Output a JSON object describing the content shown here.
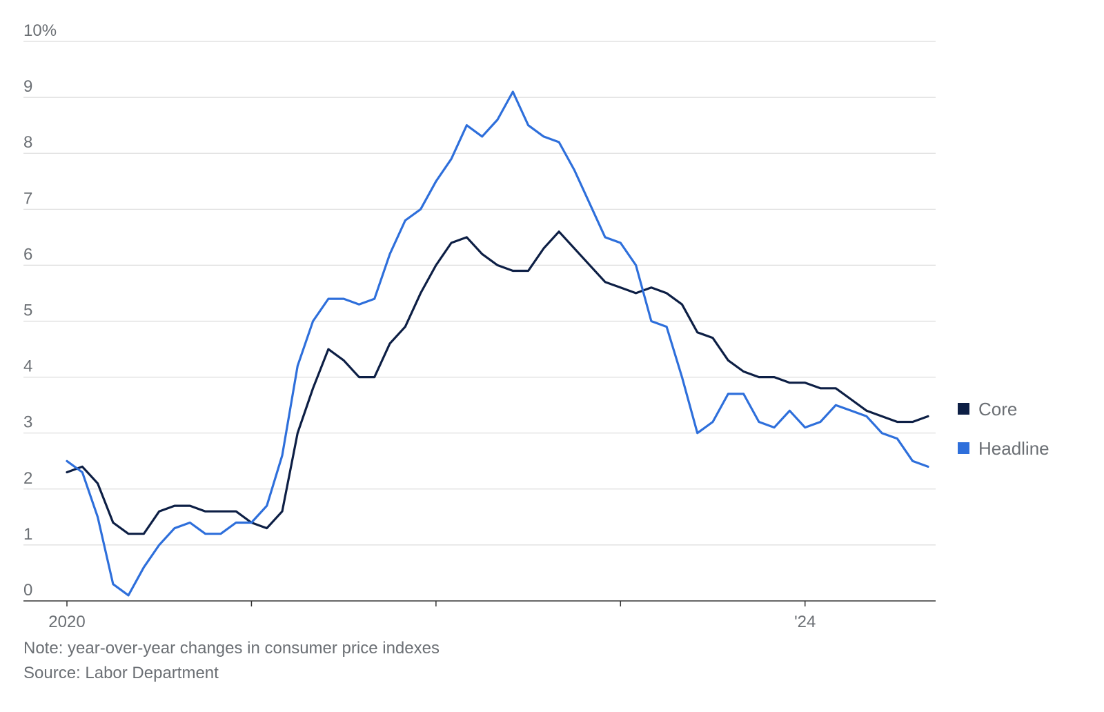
{
  "chart_data": {
    "type": "line",
    "y_unit": "%",
    "ylim": [
      0,
      10
    ],
    "yticks": [
      "0",
      "1",
      "2",
      "3",
      "4",
      "5",
      "6",
      "7",
      "8",
      "9",
      "10%"
    ],
    "x_range": [
      "2020-01",
      "2024-09"
    ],
    "xtick_labels": [
      {
        "date": "2020-01",
        "label": "2020"
      },
      {
        "date": "2024-01",
        "label": "'24"
      }
    ],
    "x_minor_ticks": [
      "2021-01",
      "2022-01",
      "2023-01"
    ],
    "grid": "horizontal",
    "legend": {
      "placement": "right"
    },
    "series": [
      {
        "name": "Core",
        "color": "#0d1f45",
        "x": [
          "2020-01",
          "2020-02",
          "2020-03",
          "2020-04",
          "2020-05",
          "2020-06",
          "2020-07",
          "2020-08",
          "2020-09",
          "2020-10",
          "2020-11",
          "2020-12",
          "2021-01",
          "2021-02",
          "2021-03",
          "2021-04",
          "2021-05",
          "2021-06",
          "2021-07",
          "2021-08",
          "2021-09",
          "2021-10",
          "2021-11",
          "2021-12",
          "2022-01",
          "2022-02",
          "2022-03",
          "2022-04",
          "2022-05",
          "2022-06",
          "2022-07",
          "2022-08",
          "2022-09",
          "2022-10",
          "2022-11",
          "2022-12",
          "2023-01",
          "2023-02",
          "2023-03",
          "2023-04",
          "2023-05",
          "2023-06",
          "2023-07",
          "2023-08",
          "2023-09",
          "2023-10",
          "2023-11",
          "2023-12",
          "2024-01",
          "2024-02",
          "2024-03",
          "2024-04",
          "2024-05",
          "2024-06",
          "2024-07",
          "2024-08",
          "2024-09"
        ],
        "values": [
          2.3,
          2.4,
          2.1,
          1.4,
          1.2,
          1.2,
          1.6,
          1.7,
          1.7,
          1.6,
          1.6,
          1.6,
          1.4,
          1.3,
          1.6,
          3.0,
          3.8,
          4.5,
          4.3,
          4.0,
          4.0,
          4.6,
          4.9,
          5.5,
          6.0,
          6.4,
          6.5,
          6.2,
          6.0,
          5.9,
          5.9,
          6.3,
          6.6,
          6.3,
          6.0,
          5.7,
          5.6,
          5.5,
          5.6,
          5.5,
          5.3,
          4.8,
          4.7,
          4.3,
          4.1,
          4.0,
          4.0,
          3.9,
          3.9,
          3.8,
          3.8,
          3.6,
          3.4,
          3.3,
          3.2,
          3.2,
          3.3
        ]
      },
      {
        "name": "Headline",
        "color": "#2e6fdb",
        "x": [
          "2020-01",
          "2020-02",
          "2020-03",
          "2020-04",
          "2020-05",
          "2020-06",
          "2020-07",
          "2020-08",
          "2020-09",
          "2020-10",
          "2020-11",
          "2020-12",
          "2021-01",
          "2021-02",
          "2021-03",
          "2021-04",
          "2021-05",
          "2021-06",
          "2021-07",
          "2021-08",
          "2021-09",
          "2021-10",
          "2021-11",
          "2021-12",
          "2022-01",
          "2022-02",
          "2022-03",
          "2022-04",
          "2022-05",
          "2022-06",
          "2022-07",
          "2022-08",
          "2022-09",
          "2022-10",
          "2022-11",
          "2022-12",
          "2023-01",
          "2023-02",
          "2023-03",
          "2023-04",
          "2023-05",
          "2023-06",
          "2023-07",
          "2023-08",
          "2023-09",
          "2023-10",
          "2023-11",
          "2023-12",
          "2024-01",
          "2024-02",
          "2024-03",
          "2024-04",
          "2024-05",
          "2024-06",
          "2024-07",
          "2024-08",
          "2024-09"
        ],
        "values": [
          2.5,
          2.3,
          1.5,
          0.3,
          0.1,
          0.6,
          1.0,
          1.3,
          1.4,
          1.2,
          1.2,
          1.4,
          1.4,
          1.7,
          2.6,
          4.2,
          5.0,
          5.4,
          5.4,
          5.3,
          5.4,
          6.2,
          6.8,
          7.0,
          7.5,
          7.9,
          8.5,
          8.3,
          8.6,
          9.1,
          8.5,
          8.3,
          8.2,
          7.7,
          7.1,
          6.5,
          6.4,
          6.0,
          5.0,
          4.9,
          4.0,
          3.0,
          3.2,
          3.7,
          3.7,
          3.2,
          3.1,
          3.4,
          3.1,
          3.2,
          3.5,
          3.4,
          3.3,
          3.0,
          2.9,
          2.5,
          2.4
        ]
      }
    ]
  },
  "footer": {
    "note": "Note: year-over-year changes in consumer price indexes",
    "source": "Source: Labor Department"
  }
}
